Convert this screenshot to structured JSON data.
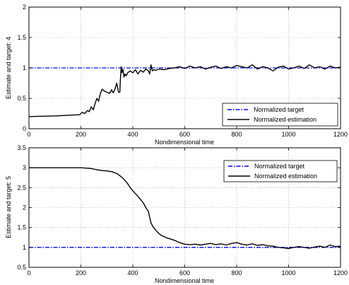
{
  "chart_data": [
    {
      "type": "line",
      "xlabel": "Nondimensional time",
      "ylabel": "Estimate and target: 4",
      "xlim": [
        0,
        1200
      ],
      "ylim": [
        0,
        2
      ],
      "xticks": [
        "0",
        "200",
        "400",
        "600",
        "800",
        "1000",
        "1200"
      ],
      "yticks": [
        "0",
        "0.5",
        "1",
        "1.5",
        "2"
      ],
      "grid": "on",
      "legend_position": "bottom-right",
      "series": [
        {
          "name": "Normalized target",
          "style": "dash-dot",
          "color": "#0000ff",
          "x": [
            0,
            1200
          ],
          "y": [
            1,
            1
          ]
        },
        {
          "name": "Normalized estimation",
          "style": "solid",
          "color": "#000000",
          "x": [
            0,
            100,
            195,
            205,
            215,
            225,
            232,
            240,
            248,
            255,
            262,
            268,
            275,
            282,
            290,
            300,
            310,
            318,
            325,
            332,
            338,
            345,
            350,
            352,
            355,
            358,
            362,
            366,
            370,
            375,
            380,
            390,
            400,
            410,
            420,
            430,
            440,
            450,
            460,
            465,
            470,
            475,
            480,
            490,
            500,
            520,
            540,
            560,
            580,
            600,
            620,
            640,
            660,
            680,
            700,
            720,
            740,
            760,
            780,
            800,
            820,
            840,
            860,
            880,
            900,
            920,
            940,
            960,
            980,
            1000,
            1020,
            1040,
            1060,
            1080,
            1100,
            1120,
            1140,
            1160,
            1180,
            1200
          ],
          "y": [
            0.2,
            0.21,
            0.23,
            0.27,
            0.25,
            0.3,
            0.28,
            0.36,
            0.31,
            0.42,
            0.5,
            0.45,
            0.58,
            0.65,
            0.62,
            0.6,
            0.58,
            0.64,
            0.59,
            0.66,
            0.75,
            0.6,
            0.6,
            0.8,
            1.02,
            0.92,
            0.98,
            0.85,
            0.9,
            0.87,
            0.92,
            0.95,
            0.92,
            0.97,
            0.9,
            0.96,
            0.93,
            0.98,
            0.95,
            0.9,
            1.05,
            0.95,
            0.97,
            0.96,
            0.98,
            0.97,
            0.99,
            1.0,
            1.02,
            0.99,
            1.03,
            1.0,
            1.02,
            0.98,
            1.01,
            1.03,
            0.99,
            1.02,
            1.0,
            1.04,
            1.02,
            1.0,
            1.05,
            0.98,
            1.02,
            1.0,
            0.95,
            1.01,
            1.03,
            0.98,
            1.0,
            1.03,
            0.99,
            1.05,
            1.0,
            1.02,
            0.98,
            1.03,
            1.0,
            1.01
          ]
        }
      ]
    },
    {
      "type": "line",
      "xlabel": "Nondimensional time",
      "ylabel": "Estimate and target: 5",
      "xlim": [
        0,
        1200
      ],
      "ylim": [
        0.5,
        3.5
      ],
      "xticks": [
        "0",
        "200",
        "400",
        "600",
        "800",
        "1000",
        "1200"
      ],
      "yticks": [
        "0.5",
        "1",
        "1.5",
        "2",
        "2.5",
        "3",
        "3.5"
      ],
      "grid": "on",
      "legend_position": "top-right",
      "series": [
        {
          "name": "Normalized target",
          "style": "dash-dot",
          "color": "#0000ff",
          "x": [
            0,
            1200
          ],
          "y": [
            1,
            1
          ]
        },
        {
          "name": "Normalized estimation",
          "style": "solid",
          "color": "#000000",
          "x": [
            0,
            100,
            200,
            240,
            260,
            280,
            300,
            320,
            340,
            360,
            370,
            380,
            390,
            400,
            410,
            420,
            430,
            440,
            450,
            460,
            465,
            470,
            475,
            480,
            490,
            500,
            510,
            520,
            530,
            540,
            550,
            560,
            570,
            580,
            590,
            600,
            620,
            640,
            660,
            680,
            700,
            720,
            740,
            760,
            780,
            800,
            820,
            840,
            860,
            880,
            900,
            920,
            940,
            960,
            980,
            1000,
            1020,
            1040,
            1060,
            1080,
            1100,
            1120,
            1140,
            1160,
            1180,
            1200
          ],
          "y": [
            3.0,
            3.0,
            3.0,
            2.98,
            2.95,
            2.93,
            2.92,
            2.9,
            2.85,
            2.75,
            2.68,
            2.6,
            2.5,
            2.42,
            2.35,
            2.28,
            2.2,
            2.12,
            2.0,
            1.9,
            1.75,
            1.62,
            1.55,
            1.5,
            1.42,
            1.35,
            1.3,
            1.27,
            1.24,
            1.22,
            1.2,
            1.18,
            1.15,
            1.12,
            1.1,
            1.08,
            1.07,
            1.08,
            1.06,
            1.08,
            1.1,
            1.07,
            1.09,
            1.06,
            1.1,
            1.12,
            1.08,
            1.06,
            1.09,
            1.05,
            1.07,
            1.04,
            1.03,
            1.0,
            0.99,
            0.97,
            1.0,
            1.02,
            1.0,
            0.98,
            1.01,
            1.03,
            1.0,
            1.06,
            1.02,
            1.03
          ]
        }
      ]
    }
  ]
}
